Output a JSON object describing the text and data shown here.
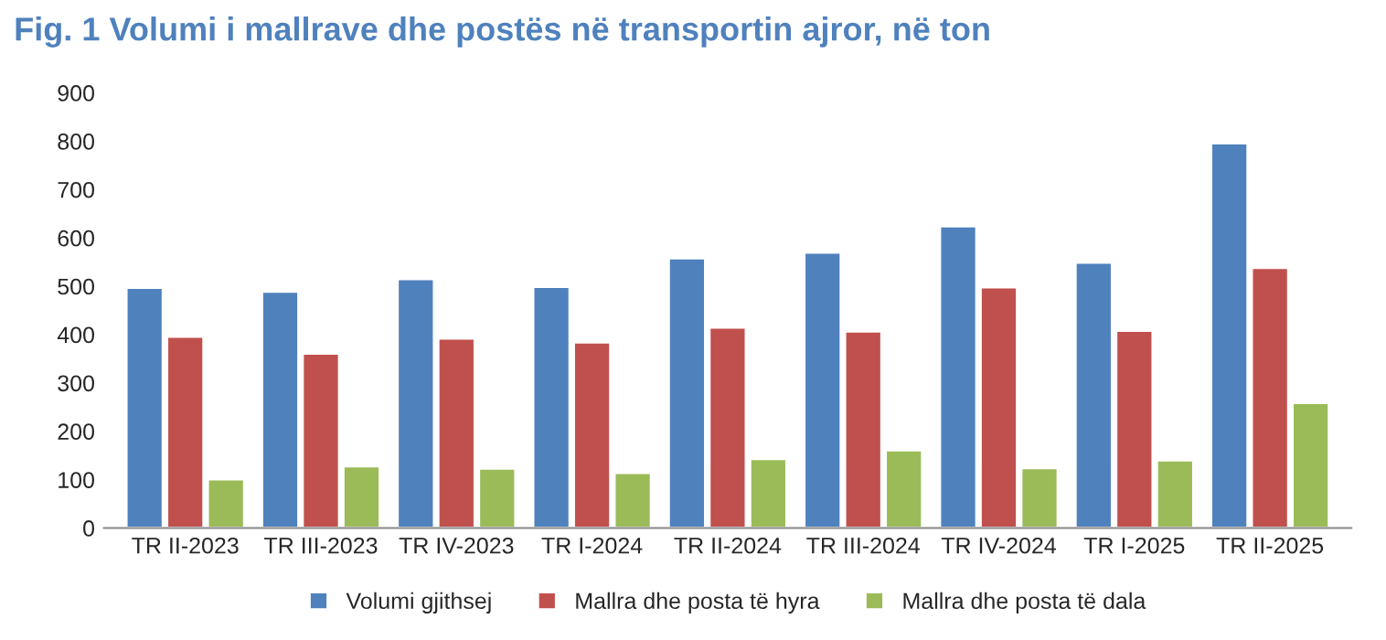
{
  "chart_data": {
    "type": "bar",
    "title": "Fig. 1 Volumi i mallrave dhe postës në transportin ajror, në ton",
    "categories": [
      "TR II-2023",
      "TR III-2023",
      "TR IV-2023",
      "TR I-2024",
      "TR II-2024",
      "TR III-2024",
      "TR IV-2024",
      "TR I-2025",
      "TR II-2025"
    ],
    "series": [
      {
        "name": "Volumi gjithsej",
        "color": "#4f81bd",
        "values": [
          497,
          489,
          515,
          499,
          558,
          570,
          624,
          549,
          796
        ]
      },
      {
        "name": "Mallra dhe posta të hyra",
        "color": "#c0504d",
        "values": [
          396,
          361,
          392,
          384,
          415,
          407,
          498,
          408,
          538
        ]
      },
      {
        "name": "Mallra dhe posta të dala",
        "color": "#9bbb59",
        "values": [
          101,
          128,
          123,
          114,
          143,
          161,
          124,
          140,
          259
        ]
      }
    ],
    "ylim": [
      0,
      900
    ],
    "yticks": [
      0,
      100,
      200,
      300,
      400,
      500,
      600,
      700,
      800,
      900
    ],
    "grid": false,
    "legend": "bottom"
  }
}
